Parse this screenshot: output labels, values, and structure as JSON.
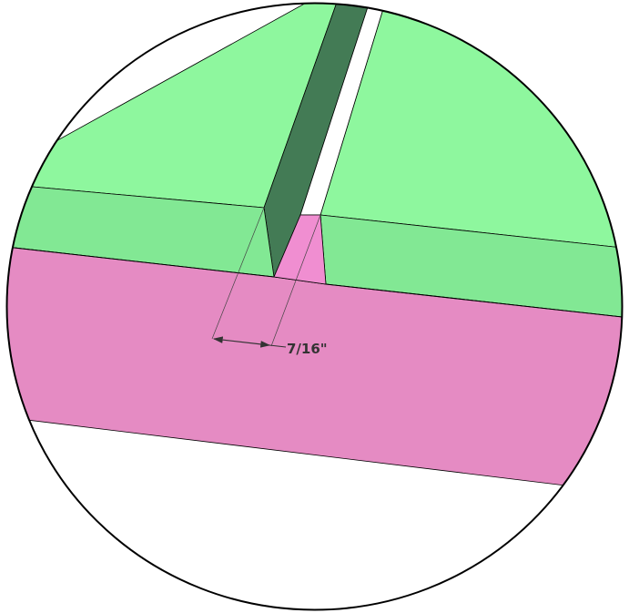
{
  "diagram": {
    "dimension_label": "7/16\"",
    "colors": {
      "board_top": "#8ef79e",
      "board_face": "#82e894",
      "slot_wall": "#437b55",
      "rail_face": "#e58bc3",
      "rail_slot_floor": "#f08ed1",
      "outline": "#000000",
      "dimension_line": "#333333",
      "background": "#ffffff"
    }
  }
}
